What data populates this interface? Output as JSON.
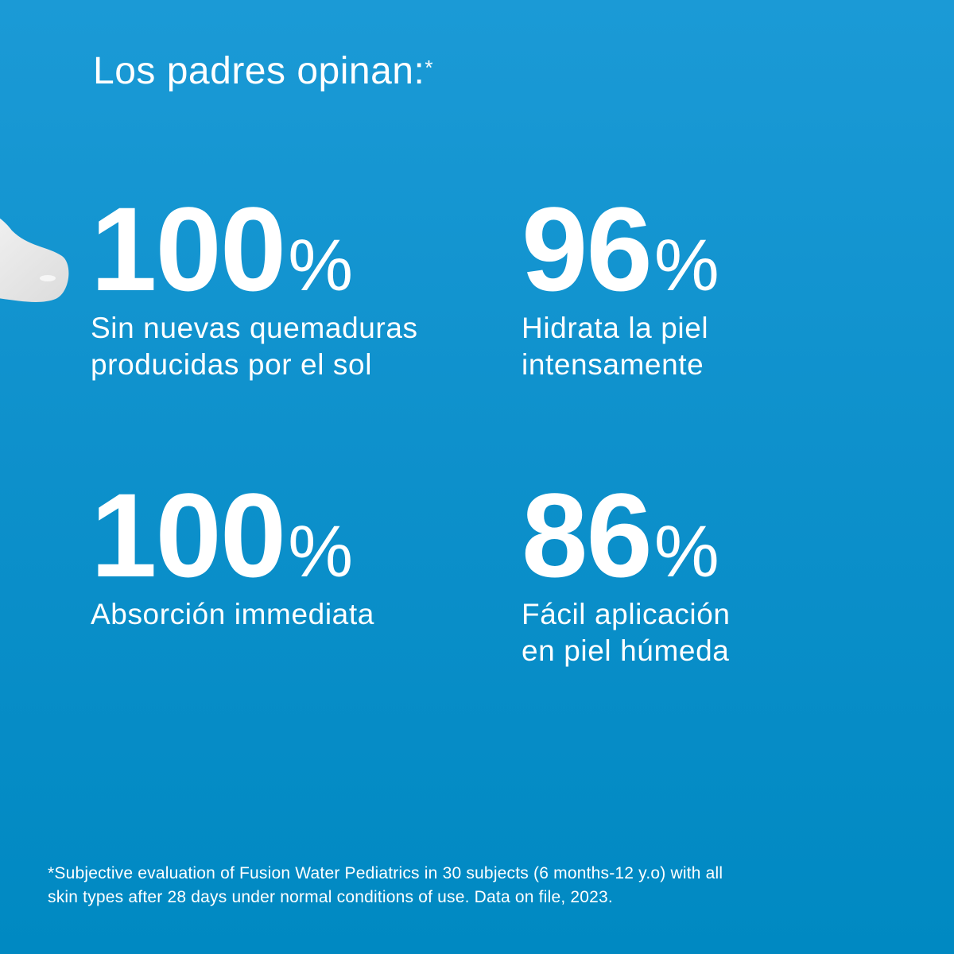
{
  "title": "Los padres opinan:",
  "title_mark": "*",
  "stats": [
    {
      "value": "100",
      "unit": "%",
      "label_lines": [
        "Sin nuevas quemaduras",
        "producidas por el sol"
      ]
    },
    {
      "value": "96",
      "unit": "%",
      "label_lines": [
        "Hidrata la piel",
        "intensamente"
      ]
    },
    {
      "value": "100",
      "unit": "%",
      "label_lines": [
        "Absorción immediata"
      ]
    },
    {
      "value": "86",
      "unit": "%",
      "label_lines": [
        "Fácil aplicación",
        "en piel húmeda"
      ]
    }
  ],
  "footnote_lines": [
    "*Subjective evaluation of Fusion Water Pediatrics in 30 subjects (6 months-12 y.o) with all",
    "skin types after 28 days under normal conditions of use. Data on file, 2023."
  ],
  "colors": {
    "background_top": "#1b9ad6",
    "background_bottom": "#0089c2",
    "text": "#ffffff"
  }
}
